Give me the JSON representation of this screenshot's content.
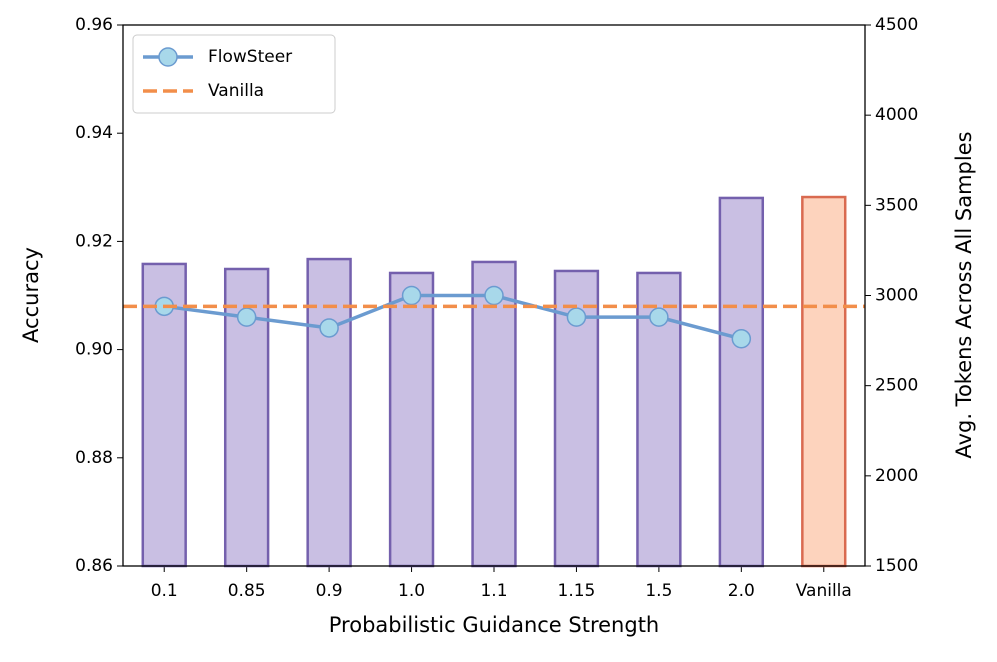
{
  "chart_data": {
    "type": "bar_line",
    "xlabel": "Probabilistic Guidance Strength",
    "ylabel": "Accuracy",
    "y2label": "Avg. Tokens Across All Samples",
    "categories": [
      "0.1",
      "0.85",
      "0.9",
      "1.0",
      "1.1",
      "1.15",
      "1.5",
      "2.0",
      "Vanilla"
    ],
    "series": [
      {
        "type": "bar",
        "axis": "y2",
        "values": [
          3175,
          3147,
          3202,
          3125,
          3186,
          3136,
          3125,
          3541,
          3546
        ],
        "colors": [
          "#c9bfe3",
          "#c9bfe3",
          "#c9bfe3",
          "#c9bfe3",
          "#c9bfe3",
          "#c9bfe3",
          "#c9bfe3",
          "#c9bfe3",
          "#fdd3bd"
        ],
        "edge_colors": [
          "#7460ad",
          "#7460ad",
          "#7460ad",
          "#7460ad",
          "#7460ad",
          "#7460ad",
          "#7460ad",
          "#7460ad",
          "#d96a50"
        ]
      },
      {
        "type": "line",
        "name": "FlowSteer",
        "color": "#6b9bd0",
        "marker_color": "#a8d8ea",
        "values": [
          0.908,
          0.906,
          0.904,
          0.91,
          0.91,
          0.906,
          0.906,
          0.902,
          null
        ]
      }
    ],
    "hlines": [
      {
        "name": "Vanilla",
        "value": 0.908,
        "color": "#f28e4a"
      }
    ],
    "ylim": [
      0.86,
      0.96
    ],
    "yticks": [
      0.86,
      0.88,
      {
        "value": 0.9,
        "label": "0.90"
      },
      0.92,
      0.94,
      0.96
    ],
    "y2lim": [
      1500,
      4500
    ],
    "y2ticks": [
      1500,
      2000,
      2500,
      3000,
      3500,
      4000,
      4500
    ],
    "legend": "upper left"
  }
}
